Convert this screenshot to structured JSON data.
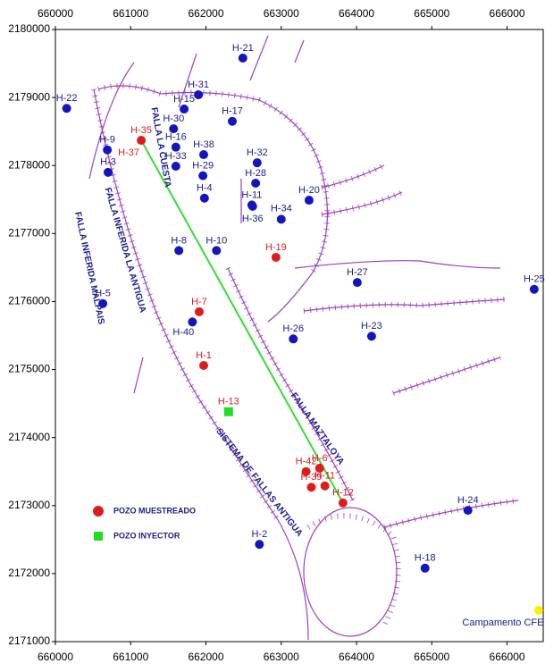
{
  "chart_data": {
    "type": "scatter",
    "xlim": [
      660000,
      666480
    ],
    "ylim": [
      2171000,
      2180000
    ],
    "xticks": [
      660000,
      661000,
      662000,
      663000,
      664000,
      665000,
      666000
    ],
    "yticks": [
      2171000,
      2172000,
      2173000,
      2174000,
      2175000,
      2176000,
      2177000,
      2178000,
      2179000,
      2180000
    ],
    "series": [
      {
        "color": "#1515c0",
        "label_color": "#1a1a8c",
        "marker": "circle",
        "labels": [
          "H-21",
          "H-31",
          "H-22",
          "H-15",
          "H-17",
          "H-30",
          "H-9",
          "H-16",
          "H-38",
          "H-32",
          "H-3",
          "H-33",
          "H-29",
          "H-28",
          "H-4",
          "H-20",
          "H-11",
          "H-36",
          "H-34",
          "H-8",
          "H-10",
          "H-27",
          "H-5",
          "H-25",
          "H-40",
          "H-26",
          "H-23",
          "H-24",
          "H-2",
          "H-18"
        ],
        "x": [
          662490,
          661900,
          660150,
          661710,
          662350,
          661570,
          660690,
          661600,
          661970,
          662680,
          660700,
          661600,
          661960,
          662660,
          661980,
          663370,
          662610,
          662620,
          663000,
          661640,
          662140,
          664010,
          660630,
          666360,
          661820,
          663160,
          664200,
          665480,
          662710,
          664910
        ],
        "y": [
          2179580,
          2179040,
          2178840,
          2178830,
          2178650,
          2178540,
          2178230,
          2178270,
          2178160,
          2178040,
          2177900,
          2177990,
          2177850,
          2177740,
          2177520,
          2177490,
          2177420,
          2177400,
          2177210,
          2176750,
          2176750,
          2176280,
          2175970,
          2176180,
          2175700,
          2175450,
          2175490,
          2172930,
          2172430,
          2172080
        ]
      },
      {
        "name": "POZO MUESTREADO",
        "color": "#e01b1b",
        "label_color": "#d42020",
        "marker": "circle",
        "labels": [
          "H-35",
          "H-37",
          "H-19",
          "H-7",
          "H-1",
          "H-42",
          "H-6",
          "H-39",
          "H-11",
          "H-12"
        ],
        "x": [
          661140,
          661140,
          662930,
          661910,
          661970,
          663330,
          663510,
          663400,
          663580,
          663820
        ],
        "y": [
          2178370,
          2178370,
          2176650,
          2175850,
          2175060,
          2173500,
          2173550,
          2173270,
          2173290,
          2173040
        ]
      },
      {
        "name": "POZO INYECTOR",
        "color": "#22dd22",
        "label_color": "#d42020",
        "marker": "square",
        "labels": [
          "H-13"
        ],
        "x": [
          662300
        ],
        "y": [
          2174380
        ]
      },
      {
        "color": "#ffee00",
        "label_color": "#1a1a8c",
        "marker": "circle",
        "labels": [
          "Campamento CFE"
        ],
        "x": [
          666420
        ],
        "y": [
          2171460
        ]
      }
    ],
    "annotations": [
      "FALLA INFERIDA MALPAIS",
      "FALLA INFERIDA LA ANTIGUA",
      "FALLA LA CUESTA",
      "FALLA MAZTALOYA",
      "SISTEMA DE FALLAS ANTIGUA"
    ]
  }
}
